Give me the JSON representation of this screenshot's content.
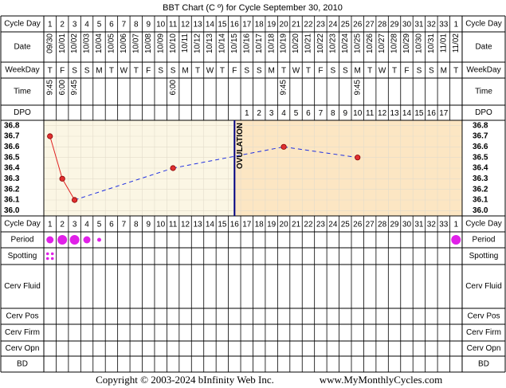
{
  "title": "BBT Chart (C º) for Cycle September 30, 2010",
  "row_labels": {
    "cycle_day": "Cycle Day",
    "date": "Date",
    "weekday": "WeekDay",
    "time": "Time",
    "dpo": "DPO",
    "period": "Period",
    "spotting": "Spotting",
    "cerv_fluid": "Cerv Fluid",
    "cerv_pos": "Cerv Pos",
    "cerv_firm": "Cerv Firm",
    "cerv_opn": "Cerv Opn",
    "bd": "BD"
  },
  "cycle_days": [
    1,
    2,
    3,
    4,
    5,
    6,
    7,
    8,
    9,
    10,
    11,
    12,
    13,
    14,
    15,
    16,
    17,
    18,
    19,
    20,
    21,
    22,
    23,
    24,
    25,
    26,
    27,
    28,
    29,
    30,
    31,
    32,
    33,
    1
  ],
  "dates": [
    "09/30",
    "10/01",
    "10/02",
    "10/03",
    "10/04",
    "10/05",
    "10/06",
    "10/07",
    "10/08",
    "10/09",
    "10/10",
    "10/11",
    "10/12",
    "10/13",
    "10/14",
    "10/15",
    "10/16",
    "10/17",
    "10/18",
    "10/19",
    "10/20",
    "10/21",
    "10/22",
    "10/23",
    "10/24",
    "10/25",
    "10/26",
    "10/27",
    "10/28",
    "10/29",
    "10/30",
    "10/31",
    "11/01",
    "11/02"
  ],
  "weekdays": [
    "T",
    "F",
    "S",
    "S",
    "M",
    "T",
    "W",
    "T",
    "F",
    "S",
    "S",
    "M",
    "T",
    "W",
    "T",
    "F",
    "S",
    "S",
    "M",
    "T",
    "W",
    "T",
    "F",
    "S",
    "S",
    "M",
    "T",
    "W",
    "T",
    "F",
    "S",
    "S",
    "M",
    "T"
  ],
  "times": [
    "9:45",
    "6:00",
    "9:45",
    null,
    null,
    null,
    null,
    null,
    null,
    null,
    "6:00",
    null,
    null,
    null,
    null,
    null,
    null,
    null,
    null,
    "9:45",
    null,
    null,
    null,
    null,
    null,
    "9:45",
    null,
    null,
    null,
    null,
    null,
    null,
    null,
    null
  ],
  "dpo": [
    null,
    null,
    null,
    null,
    null,
    null,
    null,
    null,
    null,
    null,
    null,
    null,
    null,
    null,
    null,
    null,
    1,
    2,
    3,
    4,
    5,
    6,
    7,
    8,
    9,
    10,
    11,
    12,
    13,
    14,
    15,
    16,
    17,
    null
  ],
  "temps": [
    36.7,
    36.3,
    36.1,
    null,
    null,
    null,
    null,
    null,
    null,
    null,
    36.4,
    null,
    null,
    null,
    null,
    null,
    null,
    null,
    null,
    36.6,
    null,
    null,
    null,
    null,
    null,
    36.5,
    null,
    null,
    null,
    null,
    null,
    null,
    null,
    null
  ],
  "temp_scale": [
    36.8,
    36.7,
    36.6,
    36.5,
    36.4,
    36.3,
    36.2,
    36.1,
    {
      "value": 36,
      "label": "36.0"
    }
  ],
  "ovulation_label": "OVULATION",
  "period": [
    2,
    3,
    3,
    2,
    1,
    null,
    null,
    null,
    null,
    null,
    null,
    null,
    null,
    null,
    null,
    null,
    null,
    null,
    null,
    null,
    null,
    null,
    null,
    null,
    null,
    null,
    null,
    null,
    null,
    null,
    null,
    null,
    null,
    3
  ],
  "spotting": [
    true,
    null,
    null,
    null,
    null,
    null,
    null,
    null,
    null,
    null,
    null,
    null,
    null,
    null,
    null,
    null,
    null,
    null,
    null,
    null,
    null,
    null,
    null,
    null,
    null,
    null,
    null,
    null,
    null,
    null,
    null,
    null,
    null,
    null
  ],
  "footer": {
    "copyright": "Copyright © 2003-2024 bInfinity Web Inc.",
    "site": "www.MyMonthlyCycles.com"
  }
}
